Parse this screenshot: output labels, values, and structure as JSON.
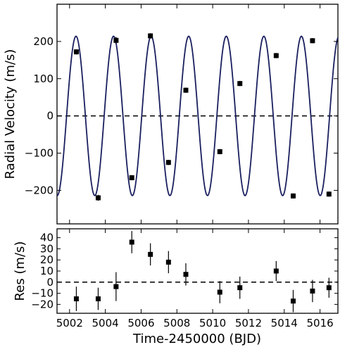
{
  "chart_data": [
    {
      "type": "scatter",
      "panel": "radial-velocity",
      "ylabel": "Radial Velocity (m/s)",
      "xlim": [
        5001.3,
        5017.0
      ],
      "ylim": [
        -290,
        300
      ],
      "yticks": [
        -200,
        -100,
        0,
        100,
        200
      ],
      "zero_line": "dashed",
      "grid": false,
      "model": {
        "type": "sine",
        "amplitude": 214,
        "period": 2.1,
        "phase_ref": 5002.36,
        "color": "#1a1f5e"
      },
      "points": [
        {
          "x": 5002.38,
          "y": 172,
          "err": 7
        },
        {
          "x": 5003.6,
          "y": -220,
          "err": 8
        },
        {
          "x": 5004.6,
          "y": 203,
          "err": 9
        },
        {
          "x": 5005.48,
          "y": -166,
          "err": 7
        },
        {
          "x": 5006.52,
          "y": 215,
          "err": 7
        },
        {
          "x": 5007.53,
          "y": -125,
          "err": 7
        },
        {
          "x": 5008.5,
          "y": 69,
          "err": 7
        },
        {
          "x": 5010.4,
          "y": -96,
          "err": 7
        },
        {
          "x": 5011.52,
          "y": 87,
          "err": 7
        },
        {
          "x": 5013.55,
          "y": 162,
          "err": 7
        },
        {
          "x": 5014.5,
          "y": -215,
          "err": 7
        },
        {
          "x": 5015.58,
          "y": 202,
          "err": 7
        },
        {
          "x": 5016.5,
          "y": -210,
          "err": 7
        }
      ]
    },
    {
      "type": "scatter",
      "panel": "residuals",
      "ylabel": "Res (m/s)",
      "xlabel": "Time-2450000 (BJD)",
      "xlim": [
        5001.3,
        5017.0
      ],
      "ylim": [
        -28,
        48
      ],
      "yticks": [
        -20,
        -10,
        0,
        10,
        20,
        30,
        40
      ],
      "xticks": [
        5002,
        5004,
        5006,
        5008,
        5010,
        5012,
        5014,
        5016
      ],
      "zero_line": "dashed",
      "grid": false,
      "points": [
        {
          "x": 5002.38,
          "y": -15,
          "err": 11
        },
        {
          "x": 5003.6,
          "y": -15,
          "err": 10
        },
        {
          "x": 5004.6,
          "y": -4,
          "err": 13
        },
        {
          "x": 5005.48,
          "y": 36,
          "err": 10
        },
        {
          "x": 5006.52,
          "y": 25,
          "err": 10
        },
        {
          "x": 5007.53,
          "y": 18,
          "err": 10
        },
        {
          "x": 5008.5,
          "y": 7,
          "err": 10
        },
        {
          "x": 5010.4,
          "y": -9,
          "err": 10
        },
        {
          "x": 5011.52,
          "y": -5,
          "err": 10
        },
        {
          "x": 5013.55,
          "y": 10,
          "err": 9
        },
        {
          "x": 5014.5,
          "y": -17,
          "err": 10
        },
        {
          "x": 5015.58,
          "y": -8,
          "err": 10
        },
        {
          "x": 5016.5,
          "y": -5,
          "err": 9
        }
      ]
    }
  ]
}
